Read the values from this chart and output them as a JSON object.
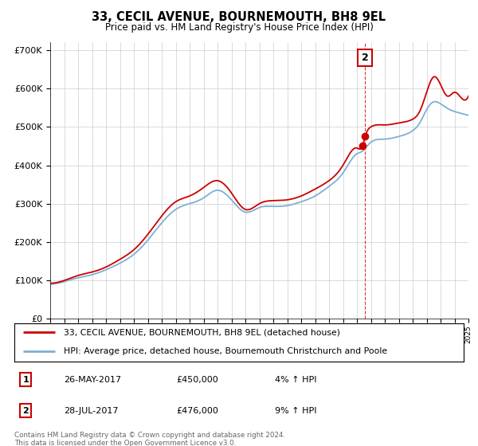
{
  "title": "33, CECIL AVENUE, BOURNEMOUTH, BH8 9EL",
  "subtitle": "Price paid vs. HM Land Registry's House Price Index (HPI)",
  "ylim": [
    0,
    720000
  ],
  "yticks": [
    0,
    100000,
    200000,
    300000,
    400000,
    500000,
    600000,
    700000
  ],
  "line1_color": "#cc0000",
  "line2_color": "#7fafd4",
  "sale1_date": 2017.4,
  "sale1_price": 450000,
  "sale2_date": 2017.57,
  "sale2_price": 476000,
  "legend_line1": "33, CECIL AVENUE, BOURNEMOUTH, BH8 9EL (detached house)",
  "legend_line2": "HPI: Average price, detached house, Bournemouth Christchurch and Poole",
  "table_row1": [
    "1",
    "26-MAY-2017",
    "£450,000",
    "4% ↑ HPI"
  ],
  "table_row2": [
    "2",
    "28-JUL-2017",
    "£476,000",
    "9% ↑ HPI"
  ],
  "footer": "Contains HM Land Registry data © Crown copyright and database right 2024.\nThis data is licensed under the Open Government Licence v3.0.",
  "grid_color": "#cccccc",
  "hpi_data": {
    "years": [
      1995,
      1996,
      1997,
      1998,
      1999,
      2000,
      2001,
      2002,
      2003,
      2004,
      2005,
      2006,
      2007,
      2008,
      2009,
      2010,
      2011,
      2012,
      2013,
      2014,
      2015,
      2016,
      2017,
      2017.4,
      2017.6,
      2018,
      2019,
      2020,
      2021,
      2021.5,
      2022,
      2022.5,
      2023,
      2023.5,
      2024,
      2024.5,
      2025
    ],
    "blue": [
      90000,
      97000,
      107000,
      115000,
      128000,
      145000,
      168000,
      205000,
      250000,
      285000,
      300000,
      315000,
      335000,
      310000,
      278000,
      290000,
      293000,
      295000,
      305000,
      320000,
      345000,
      380000,
      430000,
      437000,
      445000,
      460000,
      468000,
      475000,
      490000,
      510000,
      545000,
      565000,
      560000,
      548000,
      540000,
      535000,
      530000
    ],
    "red": [
      93000,
      100000,
      113000,
      122000,
      135000,
      155000,
      180000,
      220000,
      268000,
      305000,
      320000,
      342000,
      360000,
      328000,
      285000,
      300000,
      308000,
      310000,
      320000,
      338000,
      360000,
      400000,
      445000,
      450000,
      476000,
      500000,
      505000,
      510000,
      520000,
      540000,
      590000,
      630000,
      610000,
      580000,
      590000,
      575000,
      580000
    ]
  }
}
